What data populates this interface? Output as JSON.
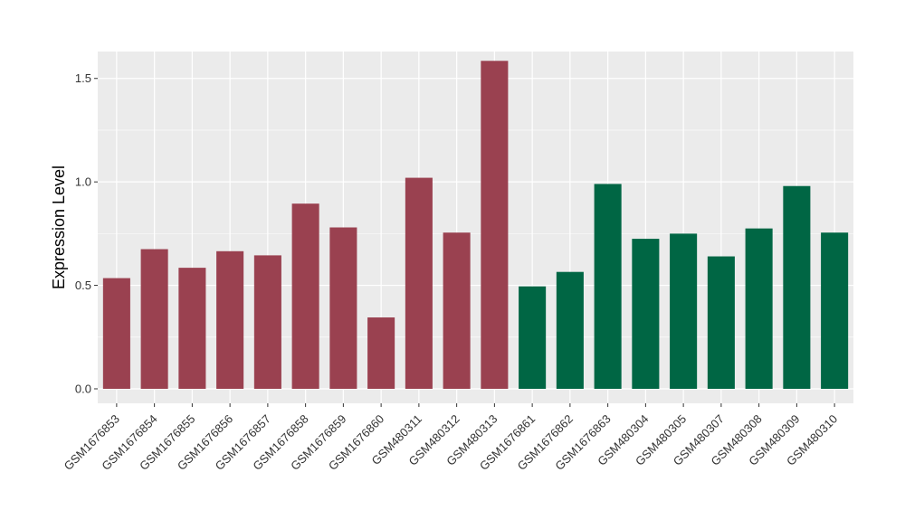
{
  "chart_data": {
    "type": "bar",
    "title": "",
    "xlabel": "",
    "ylabel": "Expression Level",
    "ylim": [
      -0.07,
      1.63
    ],
    "yticks": [
      0.0,
      0.5,
      1.0,
      1.5
    ],
    "ytick_labels": [
      "0.0",
      "0.5",
      "1.0",
      "1.5"
    ],
    "grid": true,
    "legend": "none",
    "categories": [
      "GSM1676853",
      "GSM1676854",
      "GSM1676855",
      "GSM1676856",
      "GSM1676857",
      "GSM1676858",
      "GSM1676859",
      "GSM1676860",
      "GSM480311",
      "GSM480312",
      "GSM480313",
      "GSM1676861",
      "GSM1676862",
      "GSM1676863",
      "GSM480304",
      "GSM480305",
      "GSM480307",
      "GSM480308",
      "GSM480309",
      "GSM480310"
    ],
    "values": [
      0.535,
      0.675,
      0.585,
      0.665,
      0.645,
      0.895,
      0.78,
      0.345,
      1.02,
      0.755,
      1.585,
      0.495,
      0.565,
      0.99,
      0.725,
      0.75,
      0.64,
      0.775,
      0.98,
      0.755
    ],
    "groups": [
      0,
      0,
      0,
      0,
      0,
      0,
      0,
      0,
      0,
      0,
      0,
      1,
      1,
      1,
      1,
      1,
      1,
      1,
      1,
      1
    ],
    "group_colors": [
      "#9a4150",
      "#006644"
    ],
    "panel_color": "#ebebeb",
    "grid_color": "#ffffff"
  }
}
